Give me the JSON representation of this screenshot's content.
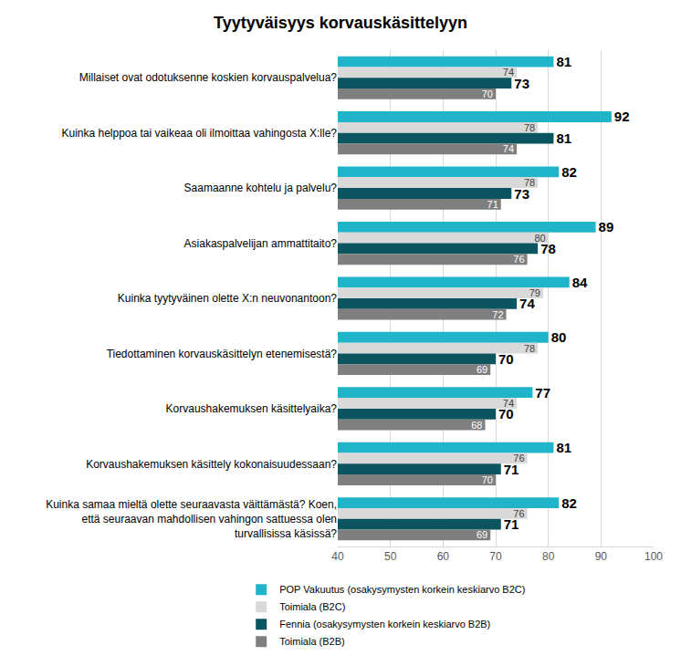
{
  "chart_data": {
    "type": "bar",
    "orientation": "horizontal",
    "title": "Tyytyväisyys korvauskäsittelyyn",
    "categories": [
      "Millaiset ovat odotuksenne koskien korvauspalvelua?",
      "Kuinka helppoa tai vaikeaa oli ilmoittaa vahingosta X:lle?",
      "Saamaanne kohtelu ja palvelu?",
      "Asiakaspalvelijan ammattitaito?",
      "Kuinka tyytyväinen olette X:n neuvonantoon?",
      "Tiedottaminen korvauskäsittelyn etenemisestä?",
      "Korvaushakemuksen käsittelyaika?",
      "Korvaushakemuksen käsittely kokonaisuudessaan?",
      "Kuinka samaa mieltä olette seuraavasta väittämästä? Koen, että seuraavan mahdollisen vahingon sattuessa olen turvallisissa käsissä?"
    ],
    "series": [
      {
        "name": "POP Vakuutus (osakysymysten korkein keskiarvo B2C)",
        "color": "#1fb4c8",
        "values": [
          81,
          92,
          82,
          89,
          84,
          80,
          77,
          81,
          82
        ]
      },
      {
        "name": "Toimiala (B2C)",
        "color": "#d9d9d9",
        "values": [
          74,
          78,
          78,
          80,
          79,
          78,
          74,
          76,
          76
        ]
      },
      {
        "name": "Fennia (osakysymysten korkein keskiarvo B2B)",
        "color": "#0b5561",
        "values": [
          73,
          81,
          73,
          78,
          74,
          70,
          70,
          71,
          71
        ]
      },
      {
        "name": "Toimiala (B2B)",
        "color": "#7f7f7f",
        "values": [
          70,
          74,
          71,
          76,
          72,
          69,
          68,
          70,
          69
        ]
      }
    ],
    "xlim": [
      40,
      100
    ],
    "xticks": [
      40,
      50,
      60,
      70,
      80,
      90,
      100
    ],
    "grid": true,
    "legend": "bottom",
    "data_labels": true
  }
}
